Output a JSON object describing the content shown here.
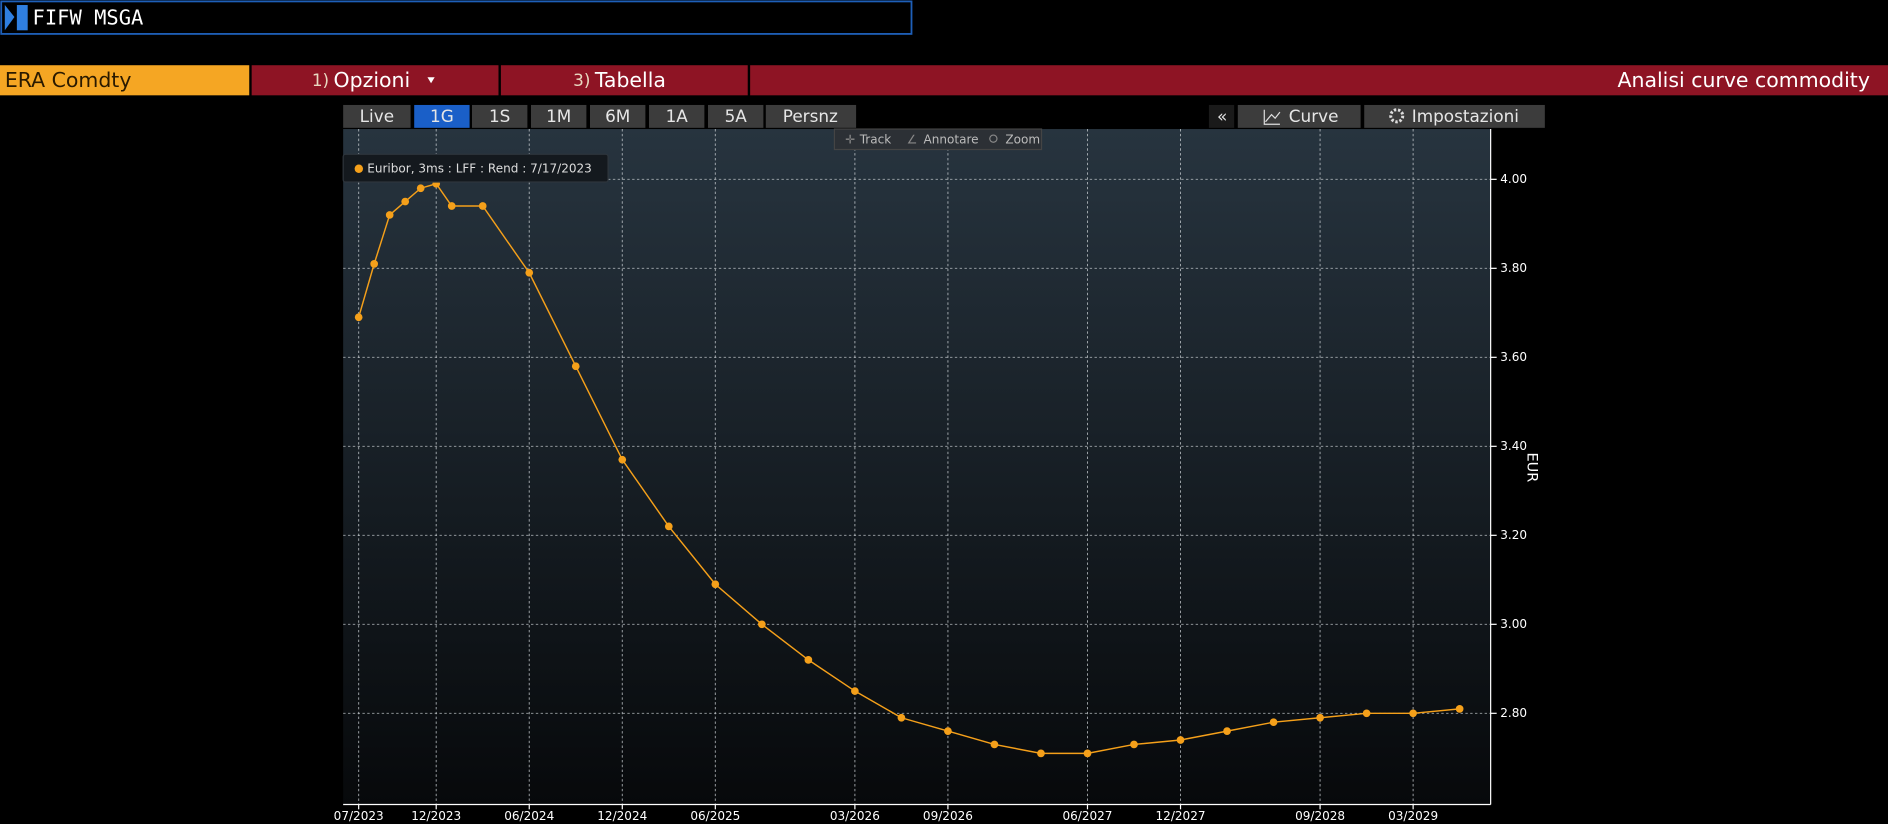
{
  "command": "FIFW MSGA",
  "security": "ERA Comdty",
  "menu": [
    {
      "number": "1)",
      "label": "Opzioni"
    },
    {
      "number": "3)",
      "label": "Tabella"
    }
  ],
  "function_title": "Analisi curve commodity",
  "periods": [
    "Live",
    "1G",
    "1S",
    "1M",
    "6M",
    "1A",
    "5A",
    "Persnz"
  ],
  "right_buttons": [
    "«",
    "Curve",
    "Impostazioni"
  ],
  "tools": [
    "Track",
    "Annotare",
    "Zoom"
  ],
  "chart_data": {
    "type": "line",
    "y_label": "EUR",
    "series": [
      {
        "name": "Euribor, 3ms : LFF : Rend : 7/17/2023",
        "color": "#f5a01a",
        "x": [
          "07/2023",
          "08/2023",
          "09/2023",
          "10/2023",
          "11/2023",
          "12/2023",
          "01/2024",
          "03/2024",
          "06/2024",
          "09/2024",
          "12/2024",
          "03/2025",
          "06/2025",
          "09/2025",
          "12/2025",
          "03/2026",
          "06/2026",
          "09/2026",
          "12/2026",
          "03/2027",
          "06/2027",
          "09/2027",
          "12/2027",
          "03/2028",
          "06/2028",
          "09/2028",
          "12/2028",
          "03/2029",
          "06/2029"
        ],
        "values": [
          3.69,
          3.81,
          3.92,
          3.95,
          3.98,
          3.99,
          3.94,
          3.94,
          3.79,
          3.58,
          3.37,
          3.22,
          3.09,
          3.0,
          2.92,
          2.85,
          2.79,
          2.76,
          2.73,
          2.71,
          2.71,
          2.73,
          2.74,
          2.76,
          2.78,
          2.79,
          2.8,
          2.8,
          2.81
        ]
      }
    ],
    "xlim": [
      "06/2023",
      "08/2029"
    ],
    "xticks": [
      "07/2023",
      "12/2023",
      "06/2024",
      "12/2024",
      "06/2025",
      "03/2026",
      "09/2026",
      "06/2027",
      "12/2027",
      "09/2028",
      "03/2029"
    ],
    "ylim": [
      2.595,
      4.113
    ],
    "yticks": [
      {
        "value": 2.8,
        "label": "2.80"
      },
      {
        "value": 3.0,
        "label": "3.00"
      },
      {
        "value": 3.2,
        "label": "3.20"
      },
      {
        "value": 3.4,
        "label": "3.40"
      },
      {
        "value": 3.6,
        "label": "3.60"
      },
      {
        "value": 3.8,
        "label": "3.80"
      },
      {
        "value": 4.0,
        "label": "4.00"
      }
    ],
    "grid": true
  }
}
